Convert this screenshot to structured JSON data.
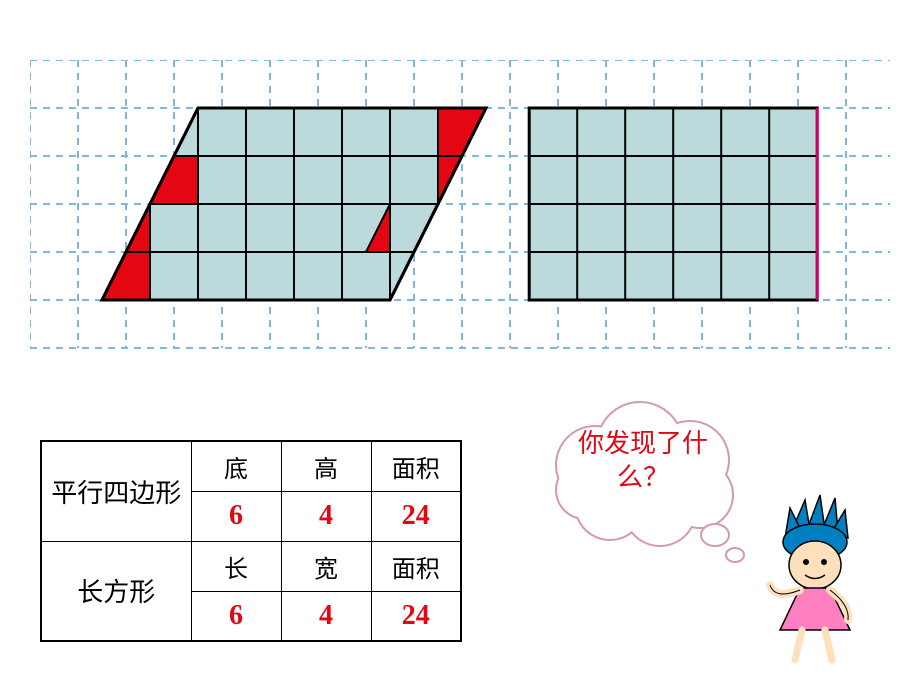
{
  "grid": {
    "cell_size": 48,
    "bg_cols": 18,
    "bg_rows": 6,
    "dash_color": "#7fb8d8",
    "fill_color": "#bcd9dc",
    "accent_color": "#e30613",
    "stroke_color": "#000000",
    "rect_edge_color": "#d4006a"
  },
  "parallelogram": {
    "base": 6,
    "height": 4,
    "shear": 2,
    "origin_col": 1.5,
    "origin_row": 1
  },
  "rectangle": {
    "width": 6,
    "height": 4,
    "origin_col": 10.4,
    "origin_row": 1
  },
  "table": {
    "rows": [
      {
        "label": "平行四边形",
        "headers": [
          "底",
          "高",
          "面积"
        ],
        "values": [
          "6",
          "4",
          "24"
        ],
        "value_color": "#e30613"
      },
      {
        "label": "长方形",
        "headers": [
          "长",
          "宽",
          "面积"
        ],
        "values": [
          "6",
          "4",
          "24"
        ],
        "value_color": "#e30613"
      }
    ]
  },
  "bubble": {
    "text": "你发现了什么？",
    "text_color": "#e30613",
    "fill": "#ffffff",
    "stroke": "#d49aa8"
  },
  "character": {
    "hair_color": "#0080c0",
    "skin_color": "#ffe0bd",
    "skirt_color": "#ff80c0",
    "outline": "#000000"
  }
}
